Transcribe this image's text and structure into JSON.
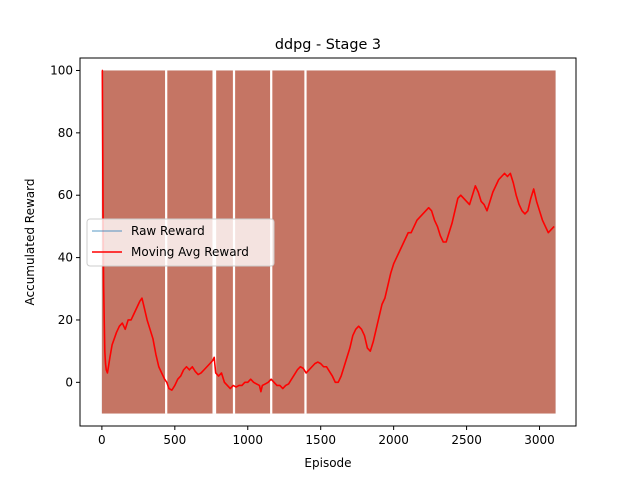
{
  "chart_data": {
    "type": "line",
    "title": "ddpg - Stage 3",
    "xlabel": "Episode",
    "ylabel": "Accumulated Reward",
    "xlim": [
      -150,
      3250
    ],
    "ylim": [
      -14,
      104
    ],
    "x_ticks": [
      0,
      500,
      1000,
      1500,
      2000,
      2500,
      3000
    ],
    "y_ticks": [
      0,
      20,
      40,
      60,
      80,
      100
    ],
    "x_tick_labels": [
      "0",
      "500",
      "1000",
      "1500",
      "2000",
      "2500",
      "3000"
    ],
    "y_tick_labels": [
      "0",
      "20",
      "40",
      "60",
      "80",
      "100"
    ],
    "grid": false,
    "legend": {
      "position": "center-left"
    },
    "series": [
      {
        "name": "Raw Reward",
        "color": "#1f77b4",
        "alpha": 0.5,
        "style": "dense-oscillation",
        "min": -10,
        "max": 100,
        "x_range": [
          0,
          3110
        ],
        "gaps": [
          440,
          765,
          775,
          905,
          1160,
          1395
        ]
      },
      {
        "name": "Moving Avg Reward",
        "color": "#ff0000",
        "points": [
          [
            0,
            100
          ],
          [
            3,
            100
          ],
          [
            8,
            55
          ],
          [
            12,
            31
          ],
          [
            16,
            20
          ],
          [
            20,
            10
          ],
          [
            25,
            6
          ],
          [
            30,
            4
          ],
          [
            38,
            3
          ],
          [
            45,
            5
          ],
          [
            55,
            8
          ],
          [
            70,
            12
          ],
          [
            85,
            14
          ],
          [
            100,
            16
          ],
          [
            120,
            18
          ],
          [
            140,
            19
          ],
          [
            160,
            17
          ],
          [
            180,
            20
          ],
          [
            200,
            20
          ],
          [
            220,
            22
          ],
          [
            240,
            24
          ],
          [
            260,
            26
          ],
          [
            275,
            27
          ],
          [
            290,
            24
          ],
          [
            310,
            20
          ],
          [
            330,
            17
          ],
          [
            350,
            14
          ],
          [
            370,
            9
          ],
          [
            390,
            5
          ],
          [
            410,
            3
          ],
          [
            430,
            1
          ],
          [
            445,
            0
          ],
          [
            460,
            -2
          ],
          [
            480,
            -2.5
          ],
          [
            500,
            -1
          ],
          [
            520,
            1
          ],
          [
            540,
            2
          ],
          [
            560,
            4
          ],
          [
            580,
            5
          ],
          [
            600,
            4
          ],
          [
            620,
            5
          ],
          [
            640,
            3.5
          ],
          [
            660,
            2.5
          ],
          [
            680,
            3
          ],
          [
            700,
            4
          ],
          [
            720,
            5
          ],
          [
            740,
            6
          ],
          [
            760,
            7
          ],
          [
            770,
            8
          ],
          [
            780,
            3
          ],
          [
            800,
            2
          ],
          [
            820,
            3
          ],
          [
            840,
            0
          ],
          [
            860,
            -1
          ],
          [
            880,
            -2
          ],
          [
            900,
            -1
          ],
          [
            920,
            -1.5
          ],
          [
            940,
            -1
          ],
          [
            960,
            -1
          ],
          [
            980,
            0
          ],
          [
            1000,
            0
          ],
          [
            1020,
            1
          ],
          [
            1040,
            0
          ],
          [
            1060,
            -0.5
          ],
          [
            1080,
            -1
          ],
          [
            1090,
            -3
          ],
          [
            1100,
            -1
          ],
          [
            1120,
            -0.5
          ],
          [
            1140,
            0
          ],
          [
            1160,
            1
          ],
          [
            1180,
            0
          ],
          [
            1200,
            -1
          ],
          [
            1220,
            -1
          ],
          [
            1240,
            -2
          ],
          [
            1260,
            -1
          ],
          [
            1280,
            -0.5
          ],
          [
            1300,
            1
          ],
          [
            1320,
            2.5
          ],
          [
            1340,
            4
          ],
          [
            1360,
            5
          ],
          [
            1380,
            4.5
          ],
          [
            1400,
            3
          ],
          [
            1420,
            4
          ],
          [
            1440,
            5
          ],
          [
            1460,
            6
          ],
          [
            1480,
            6.5
          ],
          [
            1500,
            6
          ],
          [
            1520,
            5
          ],
          [
            1540,
            5
          ],
          [
            1560,
            3.5
          ],
          [
            1580,
            2
          ],
          [
            1600,
            0
          ],
          [
            1620,
            0
          ],
          [
            1640,
            2
          ],
          [
            1660,
            5
          ],
          [
            1680,
            8
          ],
          [
            1700,
            11
          ],
          [
            1720,
            15
          ],
          [
            1740,
            17
          ],
          [
            1760,
            18
          ],
          [
            1780,
            17
          ],
          [
            1800,
            15
          ],
          [
            1820,
            11
          ],
          [
            1840,
            10
          ],
          [
            1860,
            13
          ],
          [
            1880,
            17
          ],
          [
            1900,
            21
          ],
          [
            1920,
            25
          ],
          [
            1940,
            27
          ],
          [
            1960,
            31
          ],
          [
            1980,
            35
          ],
          [
            2000,
            38
          ],
          [
            2020,
            40
          ],
          [
            2040,
            42
          ],
          [
            2060,
            44
          ],
          [
            2080,
            46
          ],
          [
            2100,
            48
          ],
          [
            2120,
            48
          ],
          [
            2140,
            50
          ],
          [
            2160,
            52
          ],
          [
            2180,
            53
          ],
          [
            2200,
            54
          ],
          [
            2220,
            55
          ],
          [
            2240,
            56
          ],
          [
            2260,
            55
          ],
          [
            2280,
            52
          ],
          [
            2300,
            50
          ],
          [
            2320,
            47
          ],
          [
            2340,
            45
          ],
          [
            2360,
            45
          ],
          [
            2380,
            48
          ],
          [
            2400,
            51
          ],
          [
            2420,
            55
          ],
          [
            2440,
            59
          ],
          [
            2460,
            60
          ],
          [
            2480,
            59
          ],
          [
            2500,
            58
          ],
          [
            2520,
            57
          ],
          [
            2540,
            60
          ],
          [
            2560,
            63
          ],
          [
            2580,
            61
          ],
          [
            2600,
            58
          ],
          [
            2620,
            57
          ],
          [
            2640,
            55
          ],
          [
            2660,
            58
          ],
          [
            2680,
            61
          ],
          [
            2700,
            63
          ],
          [
            2720,
            65
          ],
          [
            2740,
            66
          ],
          [
            2760,
            67
          ],
          [
            2780,
            66
          ],
          [
            2800,
            67
          ],
          [
            2820,
            64
          ],
          [
            2840,
            60
          ],
          [
            2860,
            57
          ],
          [
            2880,
            55
          ],
          [
            2900,
            54
          ],
          [
            2920,
            55
          ],
          [
            2940,
            59
          ],
          [
            2960,
            62
          ],
          [
            2980,
            58
          ],
          [
            3000,
            55
          ],
          [
            3020,
            52
          ],
          [
            3040,
            50
          ],
          [
            3060,
            48
          ],
          [
            3080,
            49
          ],
          [
            3100,
            50
          ]
        ]
      }
    ]
  }
}
